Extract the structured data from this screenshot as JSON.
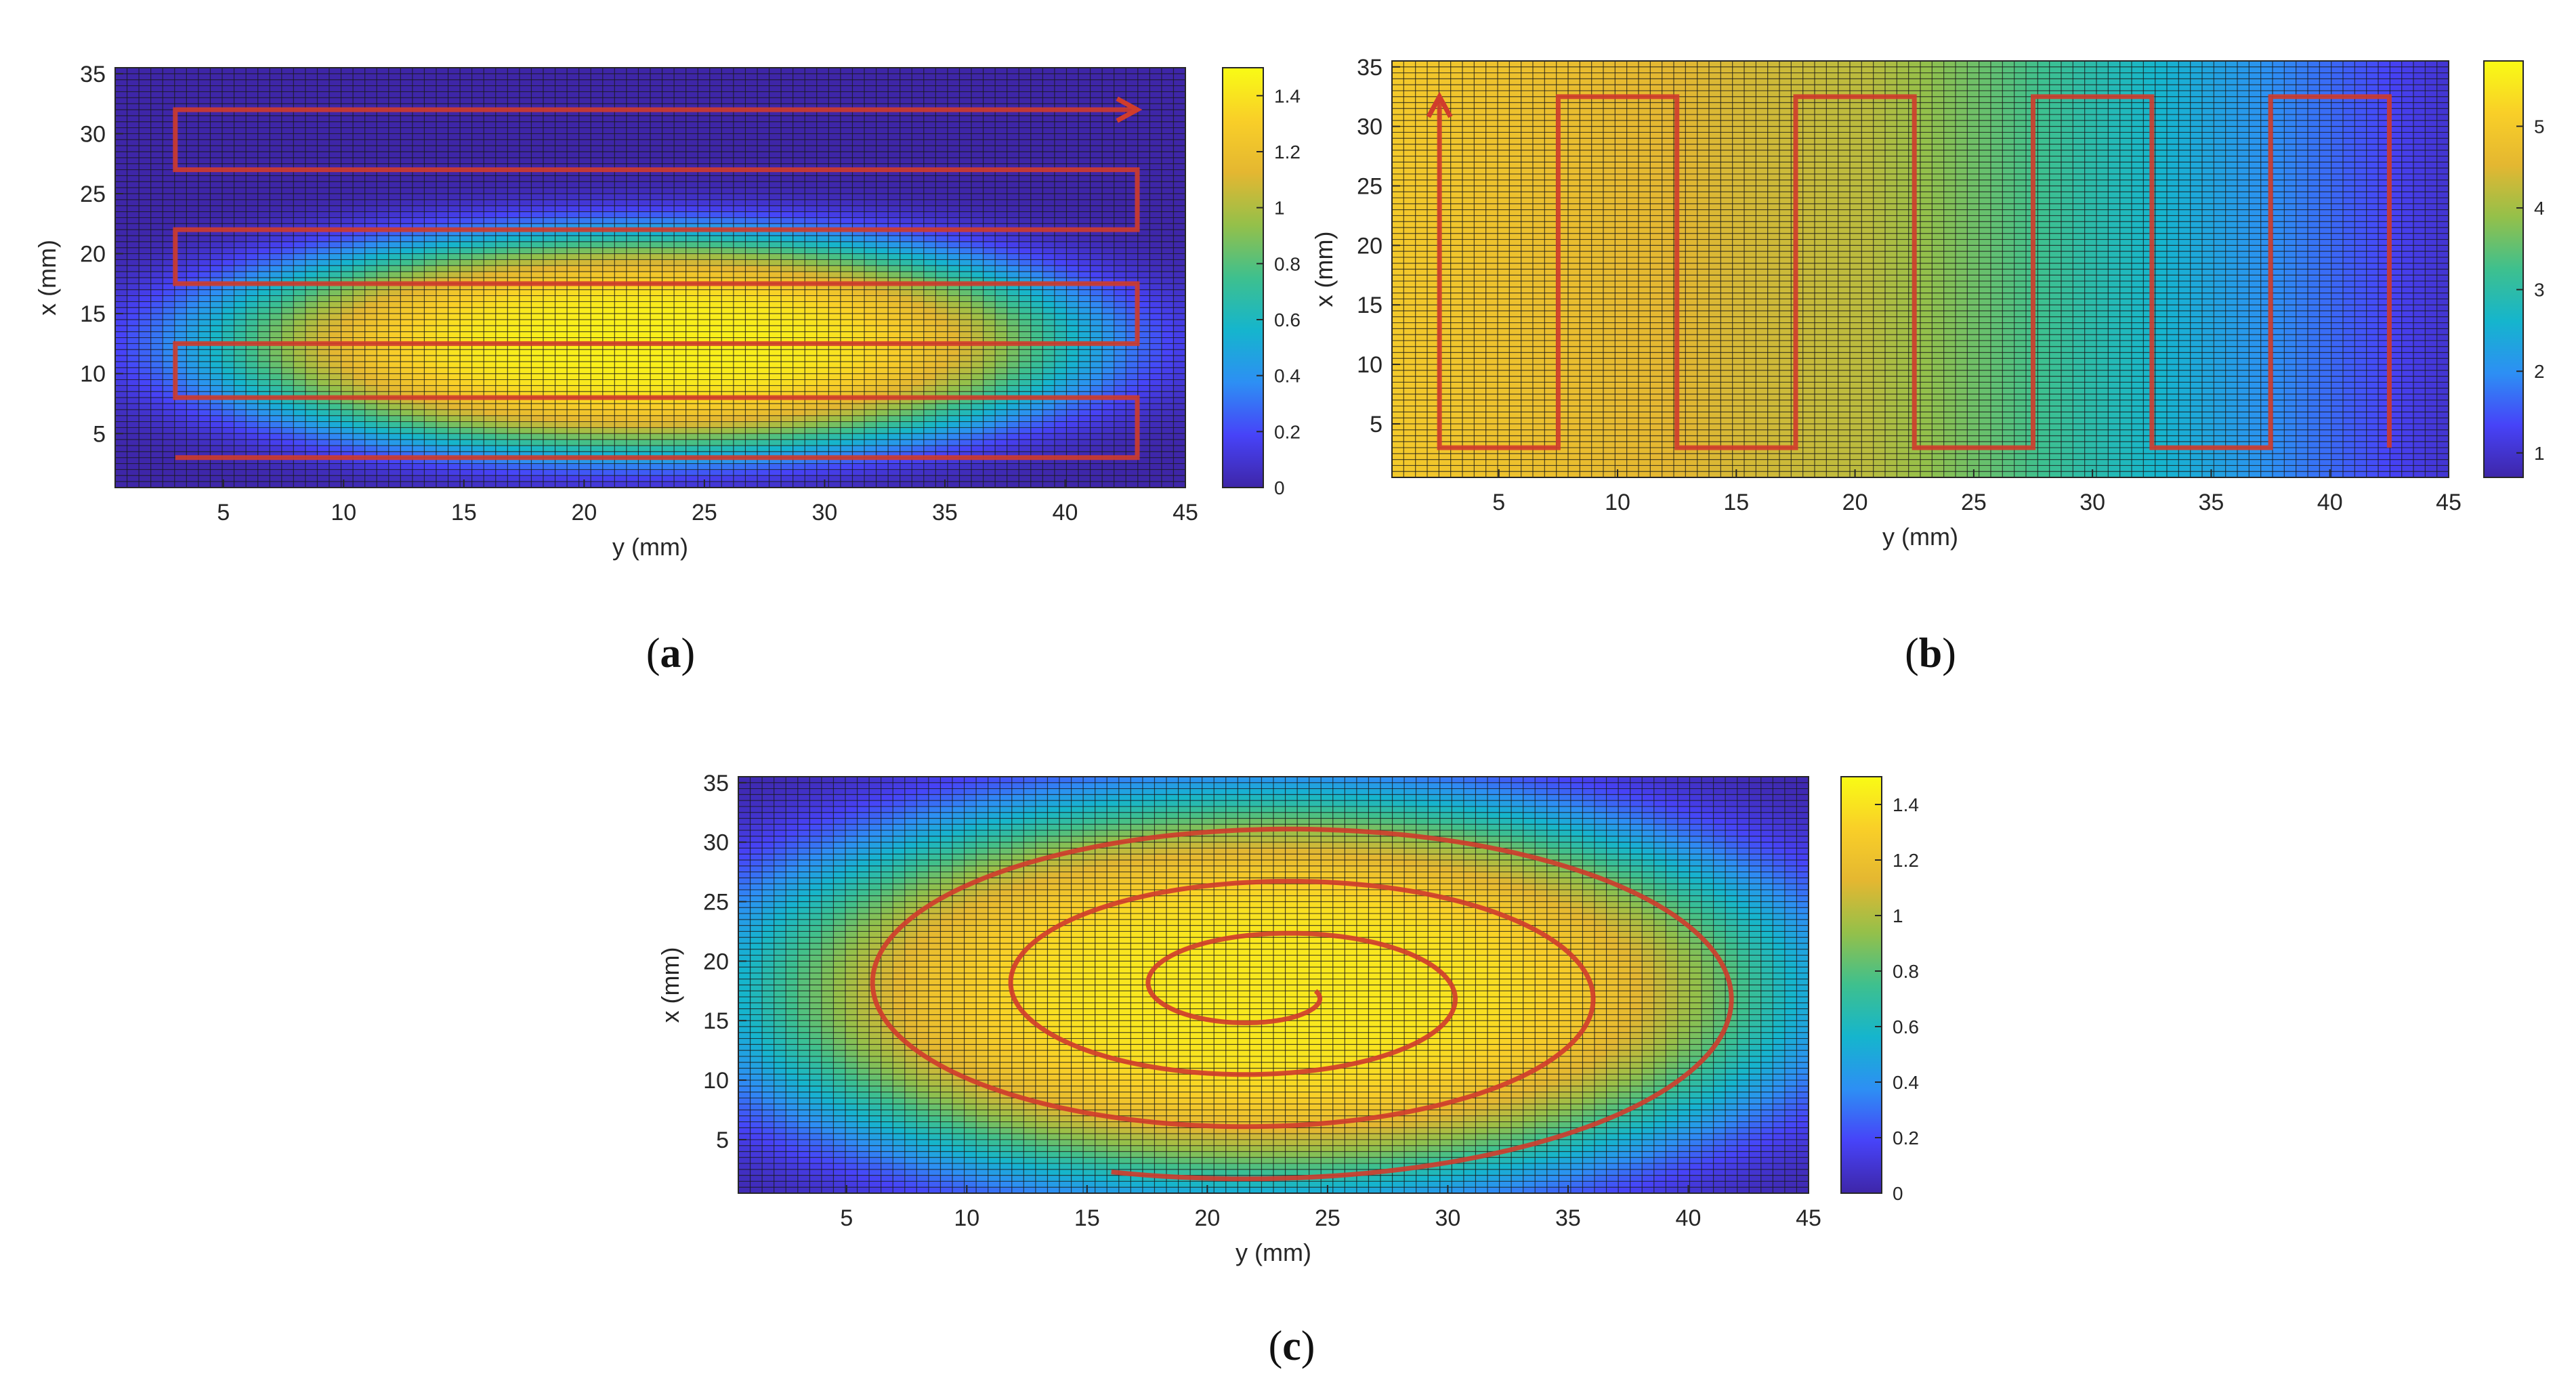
{
  "figure": {
    "captions": [
      {
        "open": "(",
        "letter": "a",
        "close": ")"
      },
      {
        "open": "(",
        "letter": "b",
        "close": ")"
      },
      {
        "open": "(",
        "letter": "c",
        "close": ")"
      }
    ]
  },
  "colors": {
    "path": "#d03c2c",
    "grid": "#1a1a1a",
    "colormap": [
      "#3e26a8",
      "#4743f8",
      "#2d8ff4",
      "#15b5cd",
      "#3ec08e",
      "#94c04a",
      "#e4b731",
      "#f9cf28",
      "#f9fb15"
    ]
  },
  "chart_data": [
    {
      "id": "a",
      "type": "heatmap",
      "title": "",
      "xlabel": "y (mm)",
      "ylabel": "x (mm)",
      "xlim": [
        0.5,
        45
      ],
      "ylim": [
        0.5,
        35.5
      ],
      "xticks": [
        5,
        10,
        15,
        20,
        25,
        30,
        35,
        40,
        45
      ],
      "yticks": [
        5,
        10,
        15,
        20,
        25,
        30,
        35
      ],
      "grid_cells": [
        90,
        70
      ],
      "colorbar": {
        "range": [
          0,
          1.5
        ],
        "ticks": [
          0,
          0.2,
          0.4,
          0.6,
          0.8,
          1,
          1.2,
          1.4
        ]
      },
      "field": {
        "shape": "ellipse",
        "center": [
          22.5,
          12.5
        ],
        "radii": [
          20.5,
          10.5
        ],
        "peak": 1.45,
        "edge_value": 0.0
      },
      "scan_path": {
        "pattern": "raster",
        "arrow_at_end": true,
        "points": [
          [
            3,
            3
          ],
          [
            43,
            3
          ],
          [
            43,
            8
          ],
          [
            3,
            8
          ],
          [
            3,
            12.5
          ],
          [
            43,
            12.5
          ],
          [
            43,
            17.5
          ],
          [
            3,
            17.5
          ],
          [
            3,
            22
          ],
          [
            43,
            22
          ],
          [
            43,
            27
          ],
          [
            3,
            27
          ],
          [
            3,
            32
          ],
          [
            43,
            32
          ]
        ]
      }
    },
    {
      "id": "b",
      "type": "heatmap",
      "title": "",
      "xlabel": "y (mm)",
      "ylabel": "x (mm)",
      "xlim": [
        0.5,
        45
      ],
      "ylim": [
        0.5,
        35.5
      ],
      "xticks": [
        5,
        10,
        15,
        20,
        25,
        30,
        35,
        40,
        45
      ],
      "yticks": [
        5,
        10,
        15,
        20,
        25,
        30,
        35
      ],
      "grid_cells": [
        90,
        70
      ],
      "colorbar": {
        "range": [
          0.7,
          5.8
        ],
        "ticks": [
          1,
          2,
          3,
          4,
          5
        ]
      },
      "field": {
        "shape": "gradient",
        "start_value": 5.0,
        "end_value": 1.0,
        "gradient_axis": "y"
      },
      "scan_path": {
        "pattern": "serpentine",
        "arrow_at_end": false,
        "arrow_at_start": true,
        "points": [
          [
            2.5,
            32.5
          ],
          [
            2.5,
            3
          ],
          [
            7.5,
            3
          ],
          [
            7.5,
            32.5
          ],
          [
            12.5,
            32.5
          ],
          [
            12.5,
            3
          ],
          [
            17.5,
            3
          ],
          [
            17.5,
            32.5
          ],
          [
            22.5,
            32.5
          ],
          [
            22.5,
            3
          ],
          [
            27.5,
            3
          ],
          [
            27.5,
            32.5
          ],
          [
            32.5,
            32.5
          ],
          [
            32.5,
            3
          ],
          [
            37.5,
            3
          ],
          [
            37.5,
            32.5
          ],
          [
            42.5,
            32.5
          ],
          [
            42.5,
            3
          ]
        ]
      }
    },
    {
      "id": "c",
      "type": "heatmap",
      "title": "",
      "xlabel": "y (mm)",
      "ylabel": "x (mm)",
      "xlim": [
        0.5,
        45
      ],
      "ylim": [
        0.5,
        35.5
      ],
      "xticks": [
        5,
        10,
        15,
        20,
        25,
        30,
        35,
        40,
        45
      ],
      "yticks": [
        5,
        10,
        15,
        20,
        25,
        30,
        35
      ],
      "grid_cells": [
        90,
        70
      ],
      "colorbar": {
        "range": [
          0,
          1.5
        ],
        "ticks": [
          0,
          0.2,
          0.4,
          0.6,
          0.8,
          1,
          1.2,
          1.4
        ]
      },
      "field": {
        "shape": "ellipse",
        "center": [
          22.5,
          17.5
        ],
        "radii": [
          25,
          19
        ],
        "peak": 1.42,
        "edge_value": 0.0
      },
      "scan_path": {
        "pattern": "spiral",
        "center": [
          22.5,
          17.5
        ],
        "turns": 3.3,
        "radius_start": [
          2.0,
          1.5
        ],
        "radius_end": [
          21.0,
          16.0
        ]
      }
    }
  ]
}
